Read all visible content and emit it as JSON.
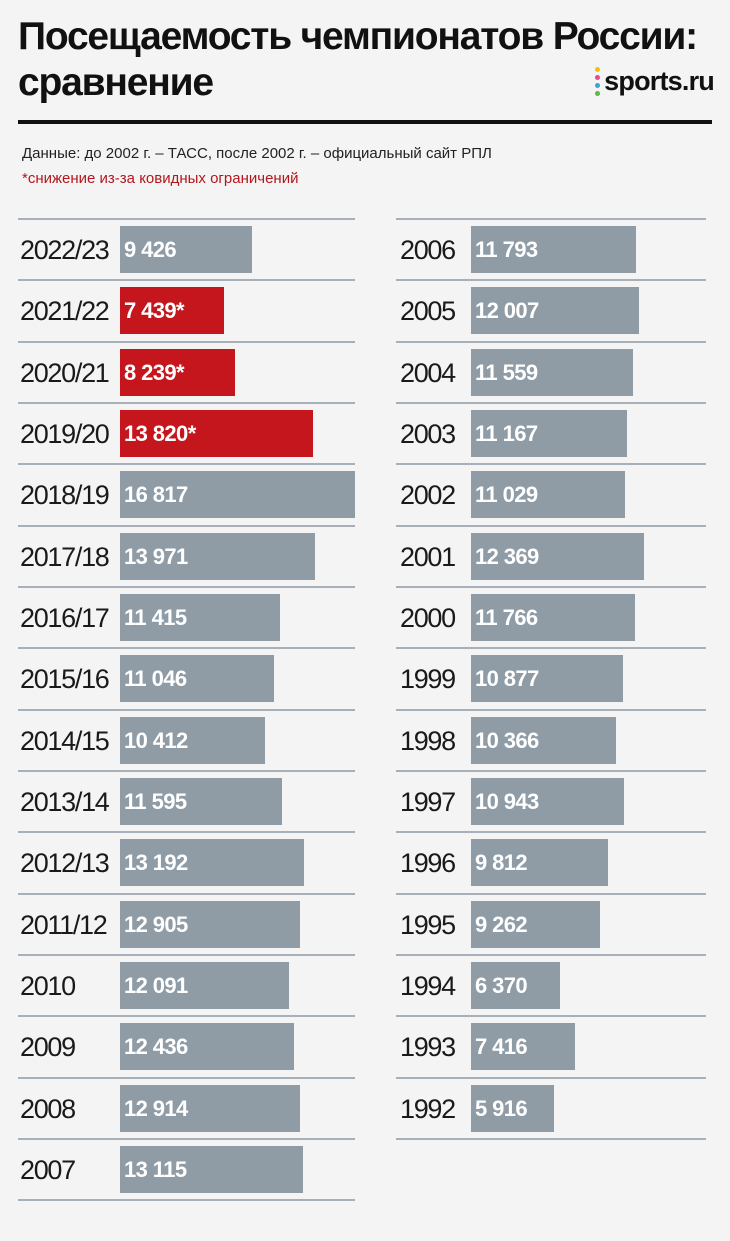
{
  "header": {
    "title": "Посещаемость чемпионатов России: сравнение",
    "logo_text": "sports.ru",
    "source_note": "Данные: до 2002 г. – ТАСС, после 2002 г. – официальный сайт РПЛ",
    "covid_note": "*снижение из-за ковидных ограничений"
  },
  "colors": {
    "normal": "#8f9ca6",
    "covid": "#c4161c",
    "logo_dots": [
      "#f2c500",
      "#e94b8a",
      "#33a6e0",
      "#58b947"
    ]
  },
  "chart_data": {
    "type": "bar",
    "orientation": "horizontal",
    "title": "Посещаемость чемпионатов России: сравнение",
    "xmax": 16817,
    "columns": [
      {
        "items": [
          {
            "label": "2022/23",
            "value": 9426,
            "text": "9 426",
            "covid": false
          },
          {
            "label": "2021/22",
            "value": 7439,
            "text": "7 439*",
            "covid": true
          },
          {
            "label": "2020/21",
            "value": 8239,
            "text": "8 239*",
            "covid": true
          },
          {
            "label": "2019/20",
            "value": 13820,
            "text": "13 820*",
            "covid": true
          },
          {
            "label": "2018/19",
            "value": 16817,
            "text": "16 817",
            "covid": false
          },
          {
            "label": "2017/18",
            "value": 13971,
            "text": "13 971",
            "covid": false
          },
          {
            "label": "2016/17",
            "value": 11415,
            "text": "11 415",
            "covid": false
          },
          {
            "label": "2015/16",
            "value": 11046,
            "text": "11 046",
            "covid": false
          },
          {
            "label": "2014/15",
            "value": 10412,
            "text": "10 412",
            "covid": false
          },
          {
            "label": "2013/14",
            "value": 11595,
            "text": "11 595",
            "covid": false
          },
          {
            "label": "2012/13",
            "value": 13192,
            "text": "13 192",
            "covid": false
          },
          {
            "label": "2011/12",
            "value": 12905,
            "text": "12 905",
            "covid": false
          },
          {
            "label": "2010",
            "value": 12091,
            "text": "12 091",
            "covid": false
          },
          {
            "label": "2009",
            "value": 12436,
            "text": "12 436",
            "covid": false
          },
          {
            "label": "2008",
            "value": 12914,
            "text": "12 914",
            "covid": false
          },
          {
            "label": "2007",
            "value": 13115,
            "text": "13 115",
            "covid": false
          }
        ]
      },
      {
        "items": [
          {
            "label": "2006",
            "value": 11793,
            "text": "11 793",
            "covid": false
          },
          {
            "label": "2005",
            "value": 12007,
            "text": "12 007",
            "covid": false
          },
          {
            "label": "2004",
            "value": 11559,
            "text": "11 559",
            "covid": false
          },
          {
            "label": "2003",
            "value": 11167,
            "text": "11 167",
            "covid": false
          },
          {
            "label": "2002",
            "value": 11029,
            "text": "11 029",
            "covid": false
          },
          {
            "label": "2001",
            "value": 12369,
            "text": "12 369",
            "covid": false
          },
          {
            "label": "2000",
            "value": 11766,
            "text": "11 766",
            "covid": false
          },
          {
            "label": "1999",
            "value": 10877,
            "text": "10 877",
            "covid": false
          },
          {
            "label": "1998",
            "value": 10366,
            "text": "10 366",
            "covid": false
          },
          {
            "label": "1997",
            "value": 10943,
            "text": "10 943",
            "covid": false
          },
          {
            "label": "1996",
            "value": 9812,
            "text": "9 812",
            "covid": false
          },
          {
            "label": "1995",
            "value": 9262,
            "text": "9 262",
            "covid": false
          },
          {
            "label": "1994",
            "value": 6370,
            "text": "6 370",
            "covid": false
          },
          {
            "label": "1993",
            "value": 7416,
            "text": "7 416",
            "covid": false
          },
          {
            "label": "1992",
            "value": 5916,
            "text": "5 916",
            "covid": false
          }
        ]
      }
    ]
  }
}
